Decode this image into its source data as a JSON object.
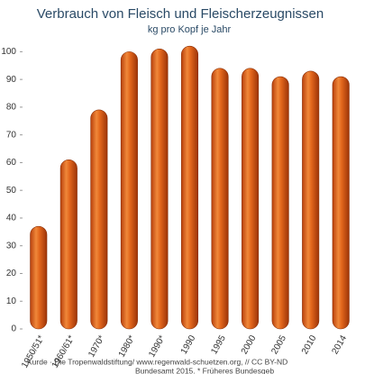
{
  "chart_data": {
    "type": "bar",
    "title": "Verbrauch von Fleisch und Fleischerzeugnissen",
    "subtitle": "kg pro Kopf je Jahr",
    "categories": [
      "1950/51*",
      "1960/61*",
      "1970*",
      "1980*",
      "1990*",
      "1990",
      "1995",
      "2000",
      "2005",
      "2010",
      "2014"
    ],
    "values": [
      37,
      61,
      79,
      100,
      101,
      102,
      94,
      94,
      91,
      93,
      91
    ],
    "color": "#e2661c",
    "ylim": [
      0,
      105
    ],
    "yticks": [
      0,
      10,
      20,
      30,
      40,
      50,
      60,
      70,
      80,
      90,
      100
    ],
    "grid": false,
    "source": [
      "Kurde · Die Tropenwaldstiftung/ www.regenwald-schuetzen.org, // CC BY-ND",
      "Bundesamt 2015. * Früheres Bundesgeb"
    ]
  }
}
